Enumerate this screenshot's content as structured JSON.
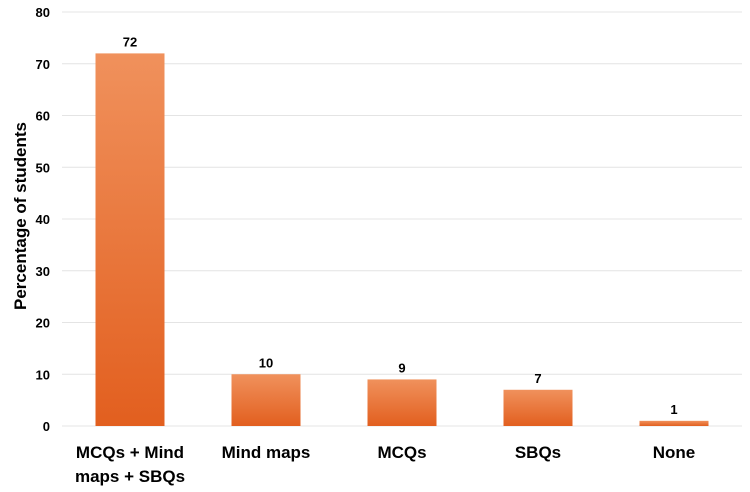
{
  "chart_data": {
    "type": "bar",
    "title": "",
    "xlabel": "",
    "ylabel": "Percentage of students",
    "ylim": [
      0,
      80
    ],
    "y_ticks": [
      "0",
      "10",
      "20",
      "30",
      "40",
      "50",
      "60",
      "70",
      "80"
    ],
    "grid": true,
    "legend": "none",
    "categories": [
      [
        "MCQs + Mind",
        "maps + SBQs"
      ],
      [
        "Mind maps"
      ],
      [
        "MCQs"
      ],
      [
        "SBQs"
      ],
      [
        "None"
      ]
    ],
    "values": [
      72,
      10,
      9,
      7,
      1
    ],
    "data_labels": [
      "72",
      "10",
      "9",
      "7",
      "1"
    ],
    "colors": {
      "bar_top": "#f0915c",
      "bar_bottom": "#e25f1f",
      "grid": "#e4e4e4"
    }
  }
}
